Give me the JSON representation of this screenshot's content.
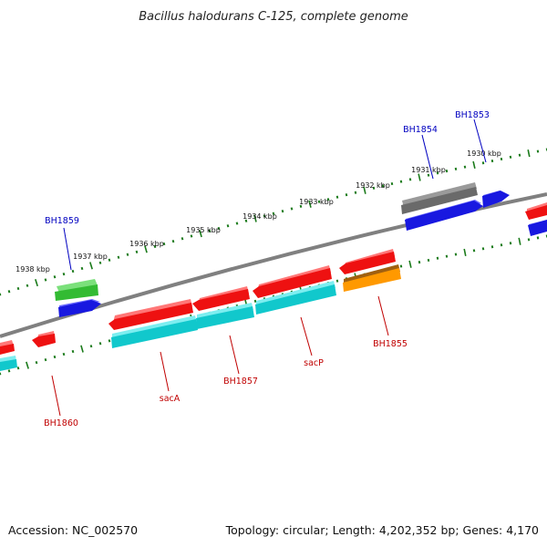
{
  "title": "Bacillus halodurans C-125, complete genome",
  "footer": {
    "accession": "Accession: NC_002570",
    "summary": "Topology: circular; Length: 4,202,352 bp; Genes: 4,170"
  },
  "colors": {
    "background": "#ffffff",
    "backbone": "#808080",
    "ruler": "#1a7a1a",
    "label_forward": "#0000c0",
    "label_reverse": "#c00000",
    "gene_red": "#ee1111",
    "gene_cyan": "#11c8cc",
    "gene_blue": "#1818e0",
    "gene_green": "#33bb33",
    "gene_gray": "#6a6a6a",
    "gene_orange": "#ff9900"
  },
  "ruler_labels": [
    "1938 kbp",
    "1937 kbp",
    "1936 kbp",
    "1935 kbp",
    "1934 kbp",
    "1933 kbp",
    "1932 kbp",
    "1931 kbp",
    "1930 kbp"
  ],
  "gene_labels": [
    {
      "name": "BH1859",
      "strand": "forward"
    },
    {
      "name": "BH1854",
      "strand": "forward"
    },
    {
      "name": "BH1853",
      "strand": "forward"
    },
    {
      "name": "BH1860",
      "strand": "reverse"
    },
    {
      "name": "sacA",
      "strand": "reverse"
    },
    {
      "name": "BH1857",
      "strand": "reverse"
    },
    {
      "name": "sacP",
      "strand": "reverse"
    },
    {
      "name": "BH1855",
      "strand": "reverse"
    }
  ]
}
